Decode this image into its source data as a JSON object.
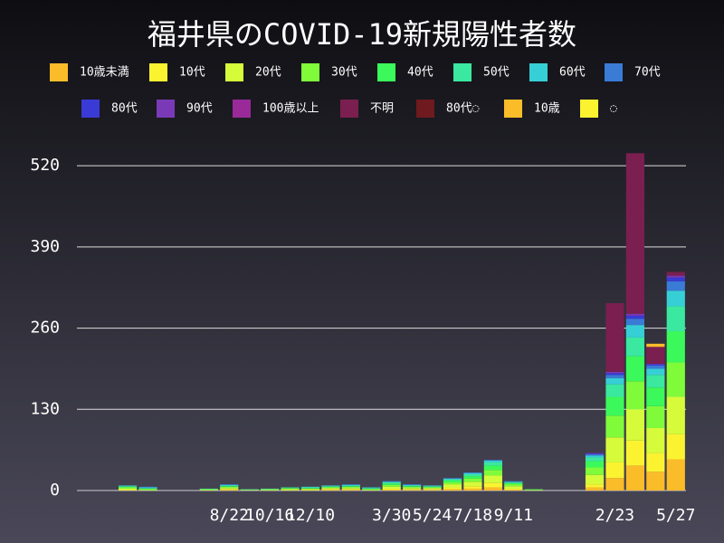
{
  "chart_data": {
    "type": "stacked_bar",
    "title": "福井県のCOVID-19新規陽性者数",
    "categories": [
      null,
      null,
      null,
      null,
      null,
      null,
      null,
      "8/22",
      null,
      "10/16",
      null,
      "12/10",
      null,
      null,
      null,
      "3/30",
      null,
      "5/24",
      null,
      "7/18",
      null,
      "9/11",
      null,
      null,
      null,
      null,
      "2/23",
      null,
      null,
      "5/27"
    ],
    "ylim": [
      0,
      568
    ],
    "yticks": [
      0,
      130,
      260,
      390,
      520
    ],
    "grid": true,
    "series": [
      {
        "name": "10歳未満",
        "color": "#fbbc2a",
        "values": [
          0,
          0,
          0,
          0,
          0,
          0,
          0,
          1,
          0,
          0,
          0,
          0,
          1,
          1,
          0,
          1,
          1,
          1,
          2,
          3,
          5,
          1,
          0,
          0,
          0,
          5,
          20,
          40,
          30,
          50
        ]
      },
      {
        "name": "10代",
        "color": "#fbf330",
        "values": [
          0,
          0,
          1,
          0,
          0,
          0,
          0,
          1,
          0,
          0,
          1,
          1,
          1,
          1,
          0,
          2,
          1,
          1,
          3,
          4,
          7,
          2,
          0,
          0,
          0,
          5,
          25,
          40,
          30,
          40
        ]
      },
      {
        "name": "20代",
        "color": "#d6fb3a",
        "values": [
          0,
          0,
          2,
          1,
          0,
          0,
          1,
          2,
          1,
          1,
          1,
          1,
          2,
          2,
          1,
          3,
          2,
          2,
          5,
          7,
          12,
          4,
          1,
          0,
          0,
          15,
          40,
          50,
          40,
          60
        ]
      },
      {
        "name": "30代",
        "color": "#7ffb3a",
        "values": [
          0,
          0,
          2,
          1,
          0,
          0,
          1,
          2,
          0,
          1,
          1,
          1,
          1,
          2,
          1,
          3,
          2,
          1,
          3,
          5,
          9,
          3,
          0,
          0,
          0,
          12,
          35,
          45,
          35,
          55
        ]
      },
      {
        "name": "40代",
        "color": "#3bf95a",
        "values": [
          0,
          0,
          1,
          1,
          0,
          0,
          0,
          1,
          0,
          0,
          1,
          1,
          1,
          1,
          1,
          2,
          1,
          1,
          3,
          4,
          7,
          2,
          1,
          0,
          0,
          10,
          30,
          40,
          30,
          50
        ]
      },
      {
        "name": "50代",
        "color": "#3ae8a0",
        "values": [
          0,
          0,
          1,
          1,
          0,
          0,
          1,
          1,
          1,
          1,
          1,
          1,
          1,
          1,
          1,
          2,
          1,
          1,
          2,
          3,
          5,
          1,
          0,
          0,
          0,
          6,
          20,
          30,
          20,
          40
        ]
      },
      {
        "name": "60代",
        "color": "#37cfd6",
        "values": [
          0,
          0,
          1,
          1,
          0,
          0,
          0,
          1,
          0,
          0,
          0,
          1,
          1,
          1,
          1,
          1,
          1,
          1,
          1,
          2,
          3,
          1,
          0,
          0,
          0,
          3,
          10,
          20,
          10,
          25
        ]
      },
      {
        "name": "70代",
        "color": "#3a7bd6",
        "values": [
          0,
          0,
          0,
          1,
          0,
          0,
          0,
          1,
          0,
          0,
          0,
          0,
          0,
          1,
          0,
          1,
          1,
          0,
          1,
          1,
          1,
          1,
          0,
          0,
          0,
          2,
          5,
          10,
          5,
          15
        ]
      },
      {
        "name": "80代",
        "color": "#3a3ad6",
        "values": [
          0,
          0,
          0,
          0,
          0,
          0,
          0,
          0,
          0,
          0,
          0,
          0,
          0,
          0,
          0,
          0,
          0,
          0,
          0,
          0,
          0,
          0,
          0,
          0,
          0,
          1,
          3,
          5,
          2,
          6
        ]
      },
      {
        "name": "90代",
        "color": "#7a3ab8",
        "values": [
          0,
          0,
          0,
          0,
          0,
          0,
          0,
          0,
          0,
          0,
          0,
          0,
          0,
          0,
          0,
          0,
          0,
          0,
          0,
          0,
          0,
          0,
          0,
          0,
          0,
          1,
          2,
          3,
          1,
          3
        ]
      },
      {
        "name": "100歳以上",
        "color": "#9a2a9a",
        "values": [
          0,
          0,
          0,
          0,
          0,
          0,
          0,
          0,
          0,
          0,
          0,
          0,
          0,
          0,
          0,
          0,
          0,
          0,
          0,
          0,
          0,
          0,
          0,
          0,
          0,
          0,
          0,
          0,
          0,
          0
        ]
      },
      {
        "name": "不明",
        "color": "#7a1f50",
        "values": [
          0,
          0,
          0,
          0,
          0,
          0,
          0,
          0,
          0,
          0,
          0,
          0,
          0,
          0,
          0,
          0,
          0,
          0,
          0,
          0,
          0,
          0,
          0,
          0,
          0,
          0,
          110,
          257,
          27,
          6
        ]
      },
      {
        "name": "80代◌",
        "color": "#6e1a1e",
        "values": [
          0,
          0,
          0,
          0,
          0,
          0,
          0,
          0,
          0,
          0,
          0,
          0,
          0,
          0,
          0,
          0,
          0,
          0,
          0,
          0,
          0,
          0,
          0,
          0,
          0,
          0,
          0,
          0,
          0,
          0
        ]
      },
      {
        "name": "10歳",
        "color": "#fbbc2a",
        "values": [
          0,
          0,
          0,
          0,
          0,
          0,
          0,
          0,
          0,
          0,
          0,
          0,
          0,
          0,
          0,
          0,
          0,
          0,
          0,
          0,
          0,
          0,
          0,
          0,
          0,
          0,
          0,
          0,
          5,
          0
        ]
      },
      {
        "name": "◌",
        "color": "#fbf330",
        "values": [
          0,
          0,
          0,
          0,
          0,
          0,
          0,
          0,
          0,
          0,
          0,
          0,
          0,
          0,
          0,
          0,
          0,
          0,
          0,
          0,
          0,
          0,
          0,
          0,
          0,
          0,
          0,
          0,
          0,
          0
        ]
      }
    ]
  }
}
